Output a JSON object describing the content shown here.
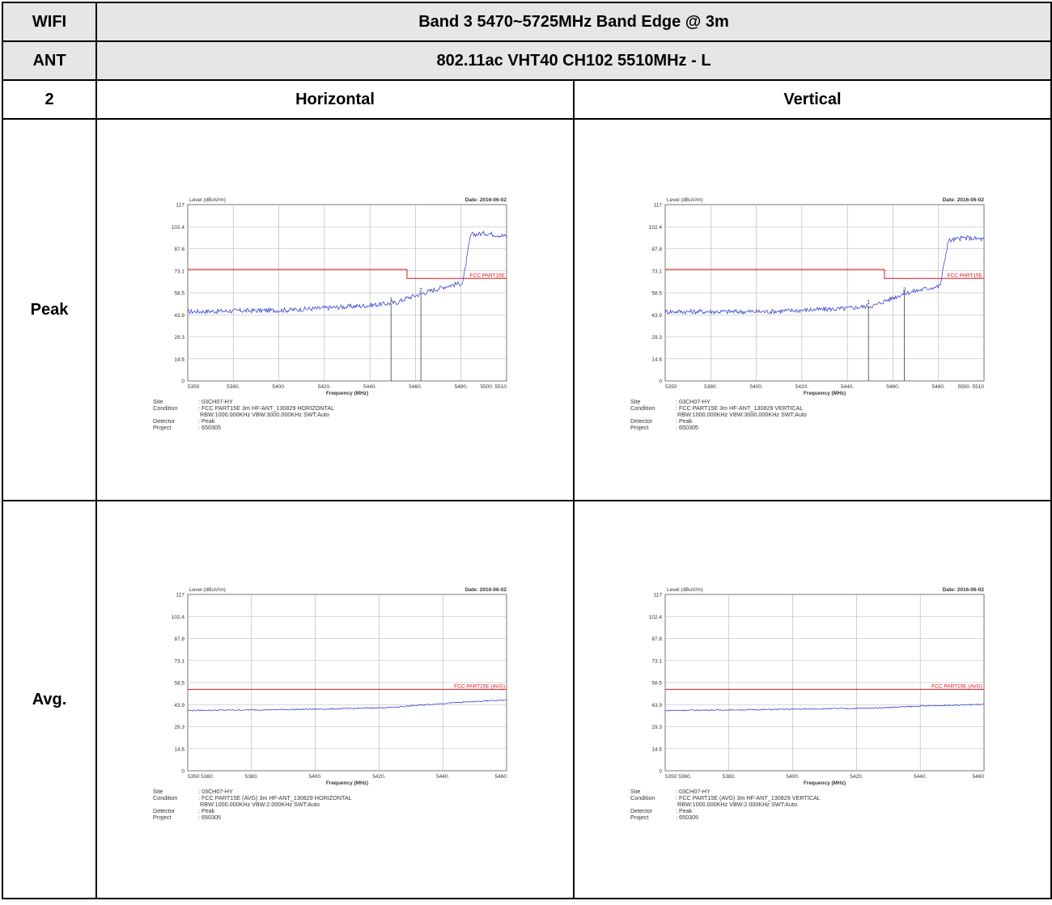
{
  "header": {
    "wifi_label": "WIFI",
    "band_title": "Band 3 5470~5725MHz Band Edge @ 3m",
    "ant_label": "ANT",
    "mode_title": "802.11ac VHT40 CH102 5510MHz - L",
    "ant_number": "2",
    "col_horizontal": "Horizontal",
    "col_vertical": "Vertical"
  },
  "rows": {
    "peak_label": "Peak",
    "avg_label": "Avg."
  },
  "chart_data": [
    {
      "id": "peak_h",
      "type": "line",
      "title": "Level (dBuV/m)",
      "date": "Date: 2016-06-02",
      "xlabel": "Frequency (MHz)",
      "xlim": [
        5350,
        5510
      ],
      "ylim": [
        0,
        117
      ],
      "xticks": [
        "5350",
        "5380.",
        "5400.",
        "5420.",
        "5440.",
        "5460.",
        "5480.",
        "5500. 5510"
      ],
      "yticks": [
        "0",
        "14.6",
        "29.3",
        "43.9",
        "58.5",
        "73.1",
        "87.8",
        "102.4",
        "117"
      ],
      "limit_label": "FCC PART15E",
      "limit": [
        [
          5350,
          74
        ],
        [
          5460,
          74
        ],
        [
          5460,
          68
        ],
        [
          5510,
          68
        ]
      ],
      "markers": [
        {
          "label": "1",
          "x": 5452
        },
        {
          "label": "2",
          "x": 5467
        }
      ],
      "series": [
        {
          "x": [
            5350,
            5400,
            5440,
            5455,
            5460,
            5470,
            5480,
            5488,
            5492,
            5500,
            5510
          ],
          "values": [
            46,
            47,
            50,
            52,
            55,
            59,
            63,
            65,
            97,
            98,
            96
          ]
        }
      ],
      "site": "03CH07-HY",
      "condition": "FCC PART15E 3m HF-ANT_130829 HORIZONTAL",
      "condition2": "RBW:1000.000KHz VBW:3000.000KHz SWT:Auto",
      "detector": "Peak",
      "project": "650305"
    },
    {
      "id": "peak_v",
      "type": "line",
      "title": "Level (dBuV/m)",
      "date": "Date: 2016-06-02",
      "xlabel": "Frequency (MHz)",
      "xlim": [
        5350,
        5510
      ],
      "ylim": [
        0,
        117
      ],
      "xticks": [
        "5350",
        "5380.",
        "5400.",
        "5420.",
        "5440.",
        "5460.",
        "5480.",
        "5500. 5510"
      ],
      "yticks": [
        "0",
        "14.6",
        "29.3",
        "43.9",
        "58.5",
        "73.1",
        "87.8",
        "102.4",
        "117"
      ],
      "limit_label": "FCC PART15E",
      "limit": [
        [
          5350,
          74
        ],
        [
          5460,
          74
        ],
        [
          5460,
          68
        ],
        [
          5510,
          68
        ]
      ],
      "markers": [
        {
          "label": "1",
          "x": 5452
        },
        {
          "label": "2",
          "x": 5470
        }
      ],
      "series": [
        {
          "x": [
            5350,
            5400,
            5440,
            5455,
            5460,
            5470,
            5480,
            5488,
            5492,
            5500,
            5510
          ],
          "values": [
            46,
            46,
            48,
            50,
            53,
            58,
            61,
            63,
            93,
            95,
            94
          ]
        }
      ],
      "site": "03CH07-HY",
      "condition": "FCC PART15E 3m HF-ANT_130829 VERTICAL",
      "condition2": "RBW:1000.000KHz VBW:3000.000KHz SWT:Auto",
      "detector": "Peak",
      "project": "650305"
    },
    {
      "id": "avg_h",
      "type": "line",
      "title": "Level (dBuV/m)",
      "date": "Date: 2016-06-02",
      "xlabel": "Frequency (MHz)",
      "xlim": [
        5350,
        5460
      ],
      "ylim": [
        0,
        117
      ],
      "xticks": [
        "5350 5360.",
        "5380.",
        "5400.",
        "5420.",
        "5440.",
        "5460"
      ],
      "yticks": [
        "0",
        "14.6",
        "29.3",
        "43.9",
        "58.5",
        "73.1",
        "87.8",
        "102.4",
        "117"
      ],
      "limit_label": "FCC PART15E (AVG)",
      "limit": [
        [
          5350,
          54
        ],
        [
          5460,
          54
        ]
      ],
      "markers": [],
      "series": [
        {
          "x": [
            5350,
            5380,
            5400,
            5420,
            5440,
            5460
          ],
          "values": [
            40,
            40.5,
            41,
            42,
            45,
            47
          ]
        }
      ],
      "site": "03CH07-HY",
      "condition": "FCC PART15E (AVG) 3m HF-ANT_130829 HORIZONTAL",
      "condition2": "RBW:1000.000KHz VBW:2.000KHz SWT:Auto",
      "detector": "Peak",
      "project": "650305"
    },
    {
      "id": "avg_v",
      "type": "line",
      "title": "Level (dBuV/m)",
      "date": "Date: 2016-06-02",
      "xlabel": "Frequency (MHz)",
      "xlim": [
        5350,
        5460
      ],
      "ylim": [
        0,
        117
      ],
      "xticks": [
        "5350 5360.",
        "5380.",
        "5400.",
        "5420.",
        "5440.",
        "5460"
      ],
      "yticks": [
        "0",
        "14.6",
        "29.3",
        "43.9",
        "58.5",
        "73.1",
        "87.8",
        "102.4",
        "117"
      ],
      "limit_label": "FCC PART15E (AVG)",
      "limit": [
        [
          5350,
          54
        ],
        [
          5460,
          54
        ]
      ],
      "markers": [],
      "series": [
        {
          "x": [
            5350,
            5380,
            5400,
            5420,
            5440,
            5458,
            5460
          ],
          "values": [
            40,
            40.5,
            41,
            41.5,
            43,
            44,
            44
          ]
        }
      ],
      "site": "03CH07-HY",
      "condition": "FCC PART15E (AVG) 3m HF-ANT_130829 VERTICAL",
      "condition2": "RBW:1000.000KHz VBW:2.000KHz SWT:Auto",
      "detector": "Peak",
      "project": "650305"
    }
  ],
  "labels": {
    "site": "Site",
    "condition": "Condition",
    "detector": "Detector",
    "project": "Project"
  },
  "colors": {
    "trace": "#2233cc",
    "limit": "#e0141e",
    "grid": "#b0b0b0",
    "header_bg": "#e6e6e6"
  }
}
